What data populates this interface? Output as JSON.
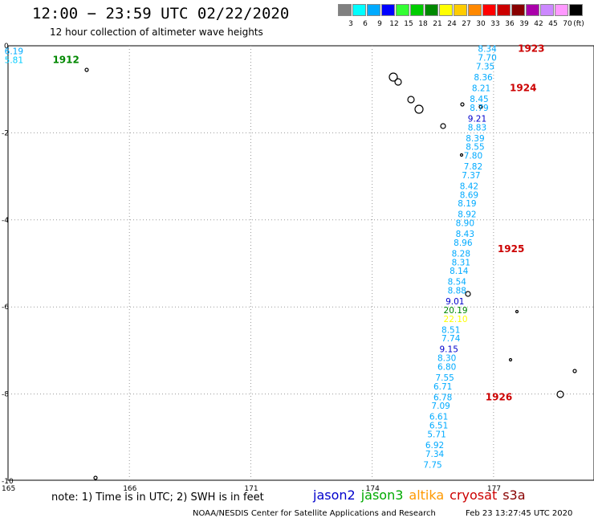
{
  "header": {
    "title": "12:00 − 23:59 UTC 02/22/2020",
    "subtitle": "12 hour collection of altimeter wave heights"
  },
  "legend": {
    "unit": "(ft)",
    "bins": [
      {
        "label": "3",
        "color": "#808080"
      },
      {
        "label": "6",
        "color": "#00ffff"
      },
      {
        "label": "9",
        "color": "#00aaff"
      },
      {
        "label": "12",
        "color": "#0000ff"
      },
      {
        "label": "15",
        "color": "#33ff33"
      },
      {
        "label": "18",
        "color": "#00cc00"
      },
      {
        "label": "21",
        "color": "#008800"
      },
      {
        "label": "24",
        "color": "#ffff00"
      },
      {
        "label": "27",
        "color": "#ffcc00"
      },
      {
        "label": "30",
        "color": "#ff8800"
      },
      {
        "label": "33",
        "color": "#ff0000"
      },
      {
        "label": "36",
        "color": "#cc0000"
      },
      {
        "label": "39",
        "color": "#880000"
      },
      {
        "label": "42",
        "color": "#aa00aa"
      },
      {
        "label": "45",
        "color": "#cc88ff"
      },
      {
        "label": "70",
        "color": "#ff99ff"
      },
      {
        "label": "",
        "color": "#000000"
      }
    ]
  },
  "map": {
    "lon_ticks": [
      "165",
      "166",
      "171",
      "174",
      "177"
    ],
    "lat_ticks": [
      "0",
      "-2",
      "-4",
      "-6",
      "-8",
      "-10"
    ],
    "track_labels": [
      {
        "text": "1912",
        "lon": 166.1,
        "lat": -0.3,
        "color": "#008800"
      },
      {
        "text": "1923",
        "lon": 177.6,
        "lat": -0.05,
        "color": "#cc0000"
      },
      {
        "text": "1924",
        "lon": 177.4,
        "lat": -0.95,
        "color": "#cc0000"
      },
      {
        "text": "1925",
        "lon": 177.1,
        "lat": -4.65,
        "color": "#cc0000"
      },
      {
        "text": "1926",
        "lon": 176.8,
        "lat": -8.05,
        "color": "#cc0000"
      }
    ],
    "observations": [
      {
        "v": "6.19",
        "lon": 165.35,
        "lat": -0.1,
        "color": "#00aaff"
      },
      {
        "v": "5.81",
        "lon": 165.35,
        "lat": -0.3,
        "color": "#00ccff"
      },
      {
        "v": "8.34",
        "lon": 177.05,
        "lat": -0.05,
        "color": "#00aaff"
      },
      {
        "v": "7.70",
        "lon": 177.05,
        "lat": -0.25,
        "color": "#00aaff"
      },
      {
        "v": "7.35",
        "lon": 177.0,
        "lat": -0.45,
        "color": "#00aaff"
      },
      {
        "v": "8.36",
        "lon": 176.95,
        "lat": -0.7,
        "color": "#00aaff"
      },
      {
        "v": "8.21",
        "lon": 176.9,
        "lat": -0.95,
        "color": "#00aaff"
      },
      {
        "v": "8.45",
        "lon": 176.85,
        "lat": -1.2,
        "color": "#00aaff"
      },
      {
        "v": "8.79",
        "lon": 176.85,
        "lat": -1.4,
        "color": "#00aaff"
      },
      {
        "v": "9.21",
        "lon": 176.8,
        "lat": -1.65,
        "color": "#0000cc"
      },
      {
        "v": "8.83",
        "lon": 176.8,
        "lat": -1.85,
        "color": "#00aaff"
      },
      {
        "v": "8.39",
        "lon": 176.75,
        "lat": -2.1,
        "color": "#00aaff"
      },
      {
        "v": "8.55",
        "lon": 176.75,
        "lat": -2.3,
        "color": "#00aaff"
      },
      {
        "v": "7.80",
        "lon": 176.7,
        "lat": -2.5,
        "color": "#00aaff"
      },
      {
        "v": "7.82",
        "lon": 176.7,
        "lat": -2.75,
        "color": "#00aaff"
      },
      {
        "v": "7.37",
        "lon": 176.65,
        "lat": -2.95,
        "color": "#00aaff"
      },
      {
        "v": "8.42",
        "lon": 176.6,
        "lat": -3.2,
        "color": "#00aaff"
      },
      {
        "v": "8.69",
        "lon": 176.6,
        "lat": -3.4,
        "color": "#00aaff"
      },
      {
        "v": "8.19",
        "lon": 176.55,
        "lat": -3.6,
        "color": "#00aaff"
      },
      {
        "v": "8.92",
        "lon": 176.55,
        "lat": -3.85,
        "color": "#00aaff"
      },
      {
        "v": "8.90",
        "lon": 176.5,
        "lat": -4.05,
        "color": "#00aaff"
      },
      {
        "v": "8.43",
        "lon": 176.5,
        "lat": -4.3,
        "color": "#00aaff"
      },
      {
        "v": "8.96",
        "lon": 176.45,
        "lat": -4.5,
        "color": "#00aaff"
      },
      {
        "v": "8.28",
        "lon": 176.4,
        "lat": -4.75,
        "color": "#00aaff"
      },
      {
        "v": "8.31",
        "lon": 176.4,
        "lat": -4.95,
        "color": "#00aaff"
      },
      {
        "v": "8.14",
        "lon": 176.35,
        "lat": -5.15,
        "color": "#00aaff"
      },
      {
        "v": "8.54",
        "lon": 176.3,
        "lat": -5.4,
        "color": "#00aaff"
      },
      {
        "v": "8.88",
        "lon": 176.3,
        "lat": -5.6,
        "color": "#00aaff"
      },
      {
        "v": "9.01",
        "lon": 176.25,
        "lat": -5.85,
        "color": "#0000cc"
      },
      {
        "v": "20.19",
        "lon": 176.2,
        "lat": -6.05,
        "color": "#008800"
      },
      {
        "v": "22.10",
        "lon": 176.2,
        "lat": -6.25,
        "color": "#ffff00"
      },
      {
        "v": "8.51",
        "lon": 176.15,
        "lat": -6.5,
        "color": "#00aaff"
      },
      {
        "v": "7.74",
        "lon": 176.15,
        "lat": -6.7,
        "color": "#00aaff"
      },
      {
        "v": "9.15",
        "lon": 176.1,
        "lat": -6.95,
        "color": "#0000cc"
      },
      {
        "v": "8.30",
        "lon": 176.05,
        "lat": -7.15,
        "color": "#00aaff"
      },
      {
        "v": "6.80",
        "lon": 176.05,
        "lat": -7.35,
        "color": "#00aaff"
      },
      {
        "v": "7.55",
        "lon": 176.0,
        "lat": -7.6,
        "color": "#00aaff"
      },
      {
        "v": "6.71",
        "lon": 175.95,
        "lat": -7.8,
        "color": "#00aaff"
      },
      {
        "v": "6.78",
        "lon": 175.95,
        "lat": -8.05,
        "color": "#00aaff"
      },
      {
        "v": "7.09",
        "lon": 175.9,
        "lat": -8.25,
        "color": "#00aaff"
      },
      {
        "v": "6.61",
        "lon": 175.85,
        "lat": -8.5,
        "color": "#00aaff"
      },
      {
        "v": "6.51",
        "lon": 175.85,
        "lat": -8.7,
        "color": "#00aaff"
      },
      {
        "v": "5.71",
        "lon": 175.8,
        "lat": -8.9,
        "color": "#00aaff"
      },
      {
        "v": "6.92",
        "lon": 175.75,
        "lat": -9.15,
        "color": "#00aaff"
      },
      {
        "v": "7.34",
        "lon": 175.75,
        "lat": -9.35,
        "color": "#00aaff"
      },
      {
        "v": "7.75",
        "lon": 175.7,
        "lat": -9.6,
        "color": "#00aaff"
      }
    ]
  },
  "footer": {
    "note": "note: 1) Time is in UTC; 2) SWH is in feet",
    "satellites": [
      {
        "name": "jason2",
        "color": "#0000cc"
      },
      {
        "name": "jason3",
        "color": "#00aa00"
      },
      {
        "name": "altika",
        "color": "#ff9900"
      },
      {
        "name": "cryosat",
        "color": "#cc0000"
      },
      {
        "name": "s3a",
        "color": "#880000"
      }
    ],
    "credit": "NOAA/NESDIS Center for Satellite Applications and Research",
    "timestamp": "Feb 23 13:27:45 UTC 2020"
  }
}
